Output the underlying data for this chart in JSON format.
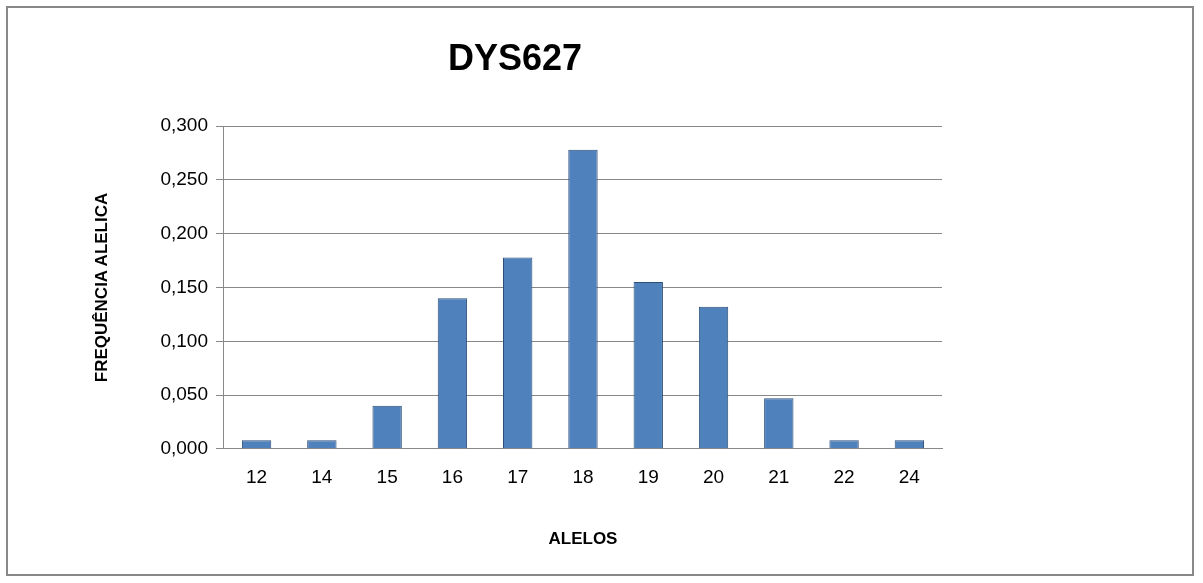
{
  "chart_data": {
    "type": "bar",
    "title": "DYS627",
    "xlabel": "ALELOS",
    "ylabel": "FREQUÊNCIA ALELICA",
    "categories": [
      "12",
      "14",
      "15",
      "16",
      "17",
      "18",
      "19",
      "20",
      "21",
      "22",
      "24"
    ],
    "values": [
      0.008,
      0.008,
      0.04,
      0.14,
      0.178,
      0.278,
      0.155,
      0.132,
      0.047,
      0.008,
      0.008
    ],
    "color": "#4f81bd",
    "ylim": [
      0,
      0.3
    ],
    "yticks": [
      {
        "value": 0,
        "label": "0,000"
      },
      {
        "value": 0.05,
        "label": "0,050"
      },
      {
        "value": 0.1,
        "label": "0,100"
      },
      {
        "value": 0.15,
        "label": "0,150"
      },
      {
        "value": 0.2,
        "label": "0,200"
      },
      {
        "value": 0.25,
        "label": "0,250"
      },
      {
        "value": 0.3,
        "label": "0,300"
      }
    ],
    "grid": "y",
    "legend": false
  }
}
